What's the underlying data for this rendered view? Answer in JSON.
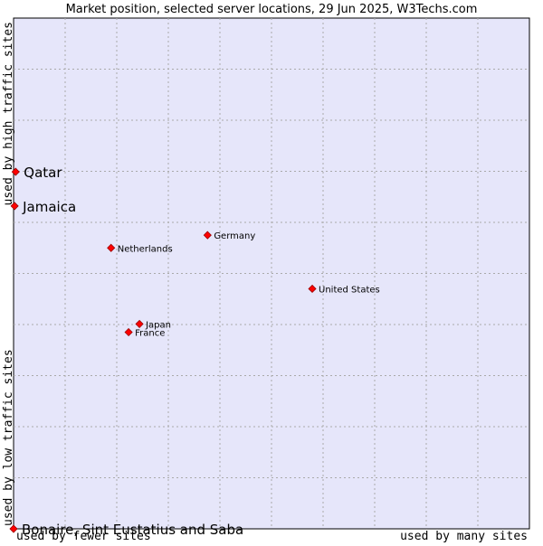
{
  "chart_data": {
    "type": "scatter",
    "title": "Market position, selected server locations, 29 Jun 2025, W3Techs.com",
    "xlabel_low": "used by fewer sites",
    "xlabel_high": "used by many sites",
    "ylabel_low": "used by low traffic sites",
    "ylabel_high": "used by high traffic sites",
    "xlim": [
      0,
      100
    ],
    "ylim": [
      0,
      100
    ],
    "grid": true,
    "colors": {
      "plot_background": "#e6e6fa",
      "grid": "#aaaaaa",
      "marker": "#ff0000",
      "marker_edge": "#990000",
      "text": "#000000"
    },
    "points": [
      {
        "name": "Qatar",
        "x": 0.4,
        "y": 69.9,
        "emphasis": true
      },
      {
        "name": "Jamaica",
        "x": 0.2,
        "y": 63.2,
        "emphasis": true
      },
      {
        "name": "Germany",
        "x": 37.6,
        "y": 57.5,
        "emphasis": false
      },
      {
        "name": "Netherlands",
        "x": 18.9,
        "y": 55.0,
        "emphasis": false
      },
      {
        "name": "United States",
        "x": 57.9,
        "y": 47.0,
        "emphasis": false
      },
      {
        "name": "Japan",
        "x": 24.4,
        "y": 40.1,
        "emphasis": false
      },
      {
        "name": "France",
        "x": 22.3,
        "y": 38.5,
        "emphasis": false
      },
      {
        "name": "Bonaire, Sint Eustatius and Saba",
        "x": 0.0,
        "y": 0.0,
        "emphasis": true
      }
    ]
  }
}
